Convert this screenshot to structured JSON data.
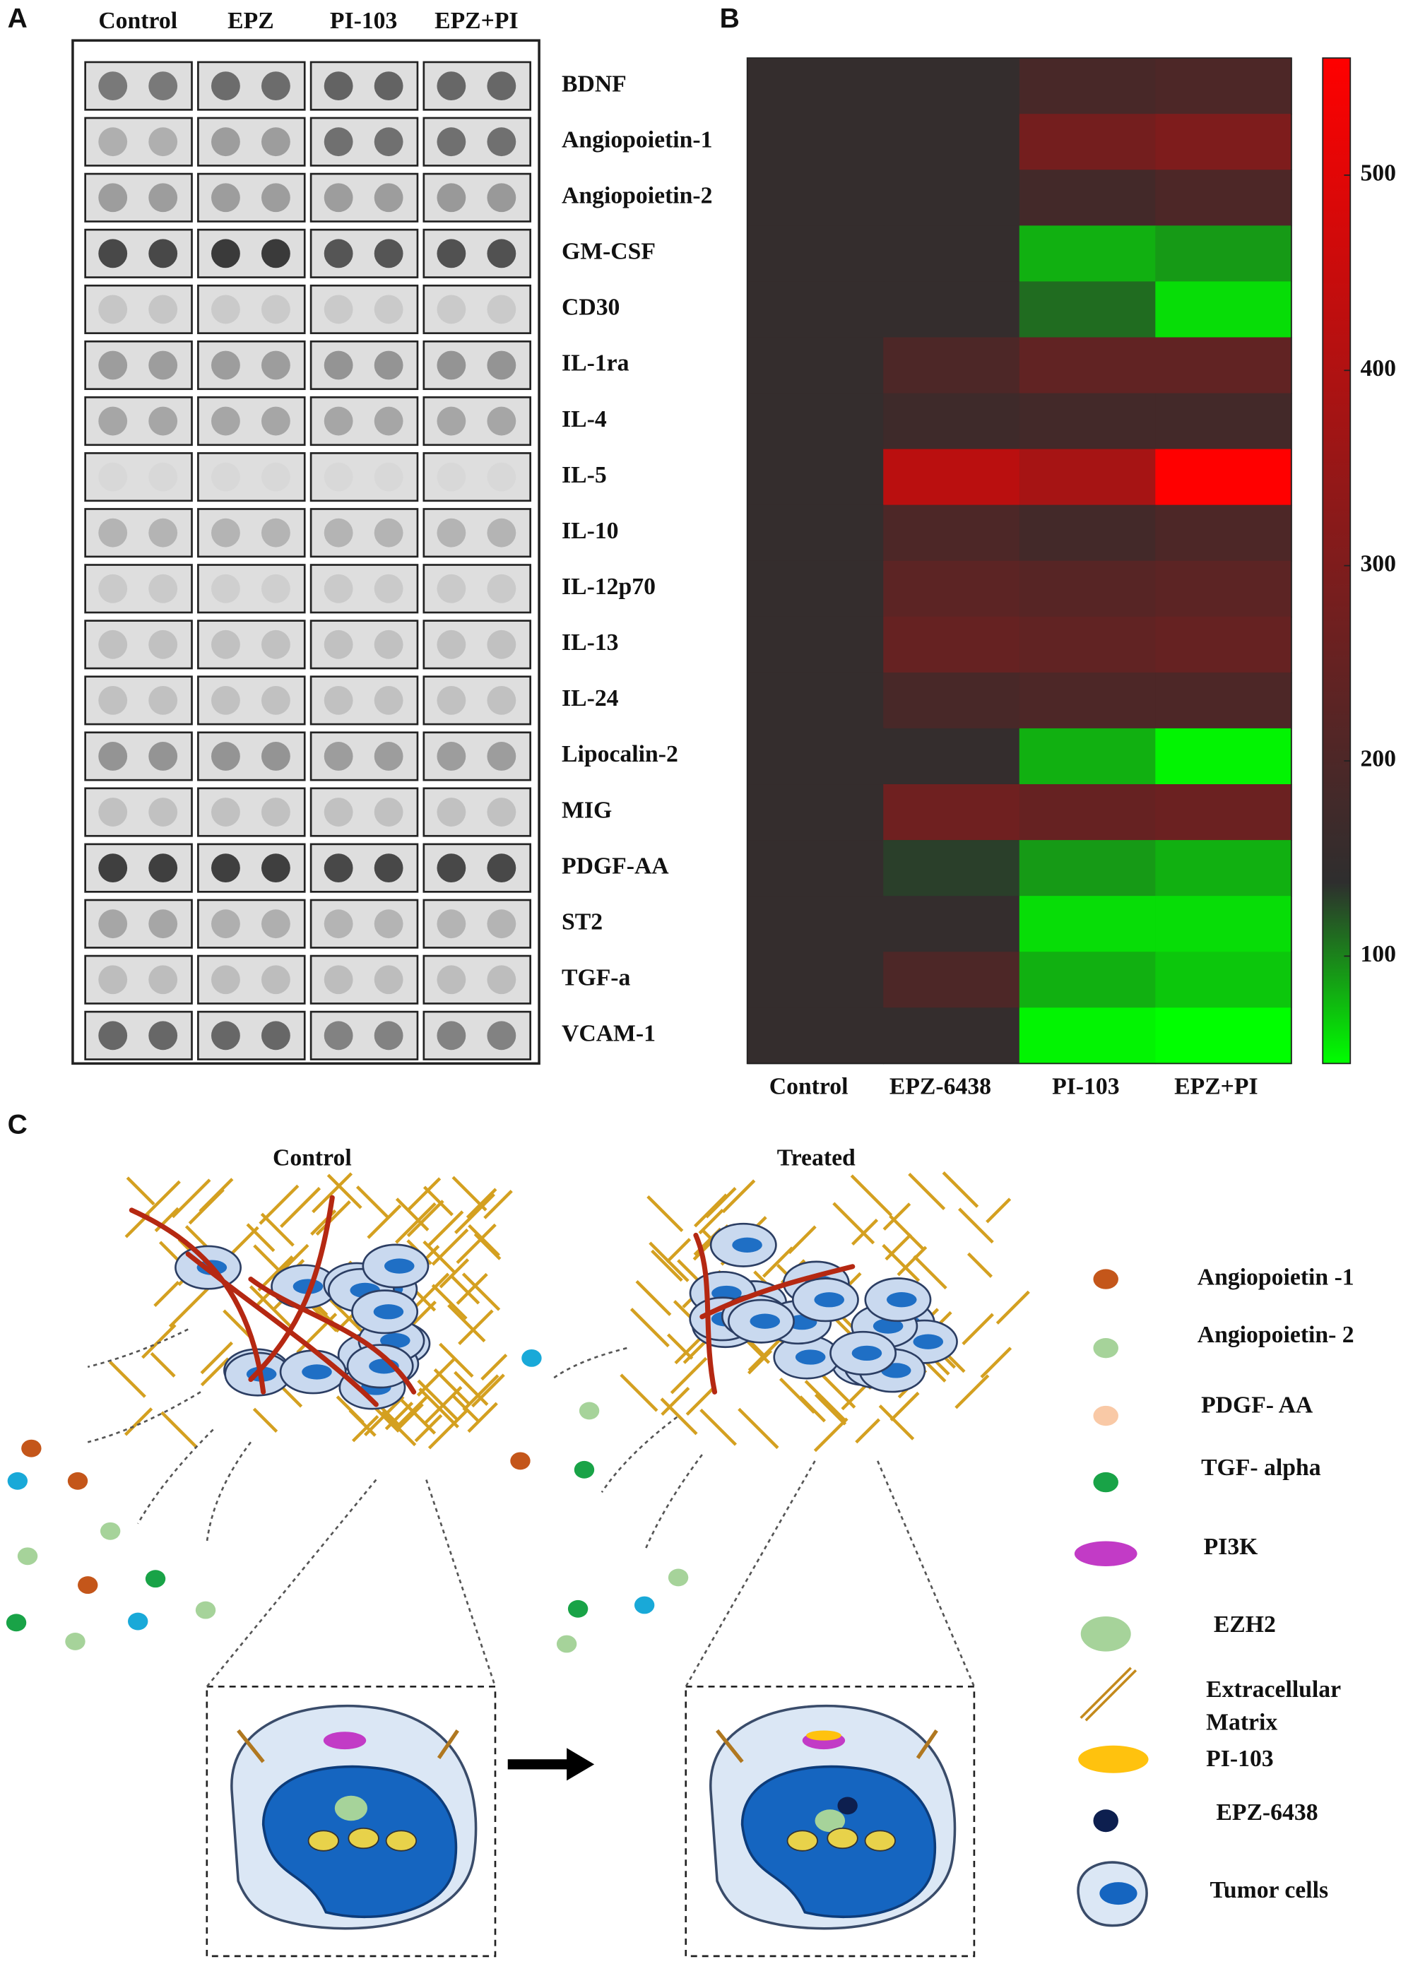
{
  "panel_labels": [
    "A",
    "B",
    "C"
  ],
  "panel_a": {
    "column_headers": [
      "Control",
      "EPZ",
      "PI-103",
      "EPZ+PI"
    ]
  },
  "chart_data": {
    "type": "heatmap",
    "columns": [
      "Control",
      "EPZ-6438",
      "PI-103",
      "EPZ+PI"
    ],
    "rows": [
      "BDNF",
      "Angiopoietin-1",
      "Angiopoietin-2",
      "GM-CSF",
      "CD30",
      "IL-1ra",
      "IL-4",
      "IL-5",
      "IL-10",
      "IL-12p70",
      "IL-13",
      "IL-24",
      "Lipocalin-2",
      "MIG",
      "PDGF-AA",
      "ST2",
      "TGF-a",
      "VCAM-1"
    ],
    "values": [
      [
        150,
        150,
        190,
        200
      ],
      [
        150,
        150,
        280,
        300
      ],
      [
        150,
        150,
        180,
        200
      ],
      [
        150,
        150,
        80,
        90
      ],
      [
        150,
        150,
        110,
        60
      ],
      [
        150,
        200,
        240,
        240
      ],
      [
        150,
        170,
        180,
        180
      ],
      [
        150,
        420,
        380,
        560
      ],
      [
        150,
        200,
        180,
        200
      ],
      [
        150,
        230,
        220,
        230
      ],
      [
        150,
        250,
        240,
        250
      ],
      [
        150,
        190,
        200,
        200
      ],
      [
        150,
        150,
        80,
        50
      ],
      [
        150,
        270,
        250,
        260
      ],
      [
        150,
        130,
        90,
        80
      ],
      [
        150,
        150,
        60,
        60
      ],
      [
        150,
        200,
        80,
        70
      ],
      [
        150,
        150,
        50,
        45
      ]
    ],
    "clim": [
      45,
      560
    ],
    "colorbar_ticks": [
      100,
      200,
      300,
      400,
      500
    ],
    "colormap": [
      "#00ff00",
      "#2e2e2e",
      "#ff0000"
    ]
  },
  "panel_c": {
    "titles": [
      "Control",
      "Treated"
    ],
    "legend": [
      {
        "label": "Angiopoietin -1"
      },
      {
        "label": "Angiopoietin- 2"
      },
      {
        "label": "PDGF- AA"
      },
      {
        "label": "TGF- alpha"
      },
      {
        "label": "PI3K"
      },
      {
        "label": "EZH2"
      },
      {
        "label_lines": [
          "Extracellular",
          "Matrix"
        ]
      },
      {
        "label": "PI-103"
      },
      {
        "label": "EPZ-6438"
      },
      {
        "label": "Tumor cells"
      }
    ]
  }
}
